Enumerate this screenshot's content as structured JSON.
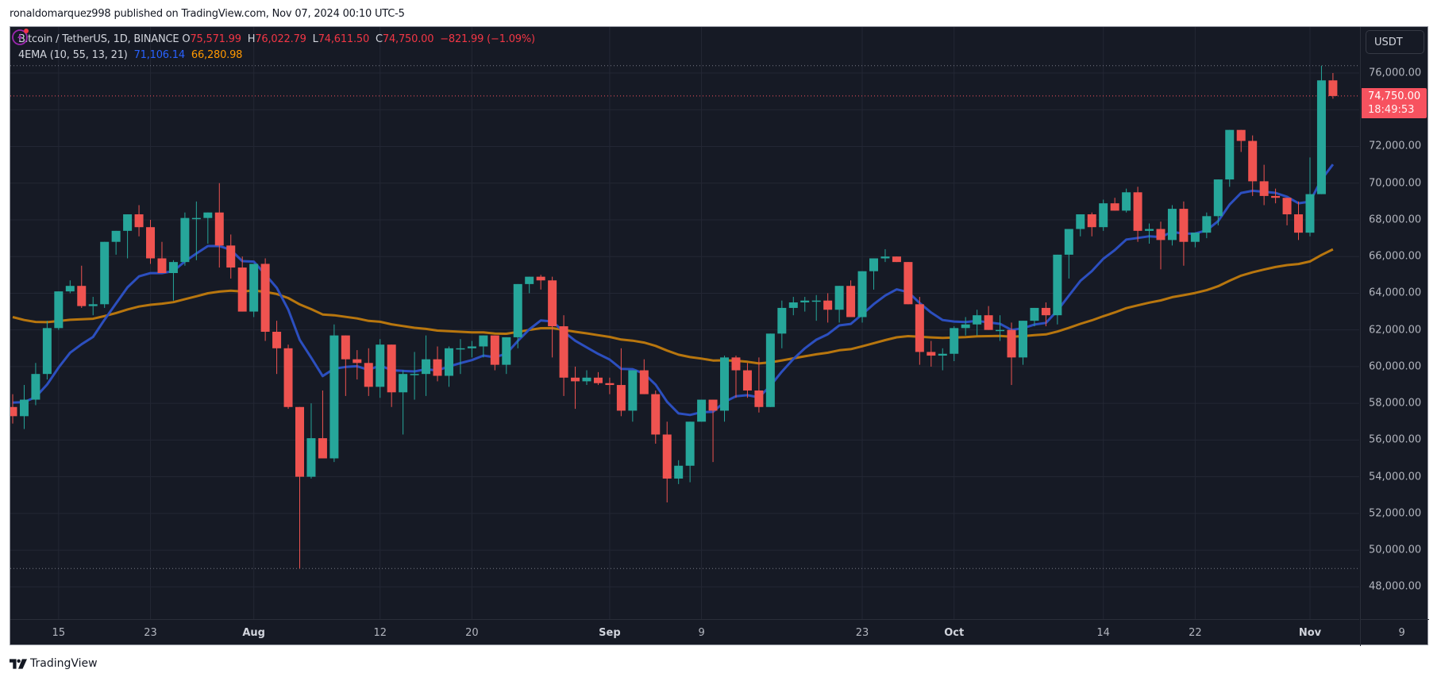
{
  "publish_line": "ronaldomarquez998 published on TradingView.com, Nov 07, 2024 00:10 UTC-5",
  "legend": {
    "symbol": "Bitcoin / TetherUS, 1D, BINANCE",
    "open_label": "O",
    "open": "75,571.99",
    "high_label": "H",
    "high": "76,022.79",
    "low_label": "L",
    "low": "74,611.50",
    "close_label": "C",
    "close": "74,750.00",
    "change": "−821.99 (−1.09%)",
    "indicator": "4EMA (10, 55, 13, 21)",
    "ema_fast_value": "71,106.14",
    "ema_slow_value": "66,280.98"
  },
  "price_axis": {
    "currency_button": "USDT",
    "last_price": "74,750.00",
    "countdown": "18:49:53"
  },
  "footer": {
    "brand": "TradingView"
  },
  "icons": {
    "alert": "lightning-bolt-icon",
    "logo": "tradingview-logo-icon"
  },
  "colors": {
    "up": "#26a69a",
    "down": "#ef5350",
    "background": "#161a25",
    "grid": "#232734",
    "ema_fast": "#2c4fbf",
    "ema_slow": "#b8760e",
    "last_price_line": "#f7525f"
  },
  "chart_data": {
    "type": "candlestick",
    "title": "Bitcoin / TetherUS, 1D, BINANCE",
    "xlabel": "",
    "ylabel": "USDT",
    "ylim": [
      46500,
      77500
    ],
    "grid": true,
    "legend_position": "top-left",
    "y_ticks": [
      "76,000.00",
      "72,000.00",
      "70,000.00",
      "68,000.00",
      "66,000.00",
      "64,000.00",
      "62,000.00",
      "60,000.00",
      "58,000.00",
      "56,000.00",
      "54,000.00",
      "52,000.00",
      "50,000.00",
      "48,000.00"
    ],
    "x_ticks": [
      {
        "label": "15",
        "index": 4,
        "bold": false
      },
      {
        "label": "23",
        "index": 12,
        "bold": false
      },
      {
        "label": "Aug",
        "index": 21,
        "bold": true
      },
      {
        "label": "12",
        "index": 32,
        "bold": false
      },
      {
        "label": "20",
        "index": 40,
        "bold": false
      },
      {
        "label": "Sep",
        "index": 52,
        "bold": true
      },
      {
        "label": "9",
        "index": 60,
        "bold": false
      },
      {
        "label": "23",
        "index": 74,
        "bold": false
      },
      {
        "label": "Oct",
        "index": 82,
        "bold": true
      },
      {
        "label": "14",
        "index": 95,
        "bold": false
      },
      {
        "label": "22",
        "index": 103,
        "bold": false
      },
      {
        "label": "Nov",
        "index": 113,
        "bold": true
      },
      {
        "label": "9",
        "index": 121,
        "bold": false
      }
    ],
    "reference_lines": {
      "last_price": 74750,
      "high_marker": 76400,
      "low_marker": 49000
    },
    "ohlc": [
      [
        57800,
        58500,
        56900,
        57300
      ],
      [
        57300,
        59000,
        56600,
        58200
      ],
      [
        58200,
        60200,
        57900,
        59600
      ],
      [
        59600,
        62500,
        59300,
        62100
      ],
      [
        62100,
        63800,
        62000,
        64100
      ],
      [
        64100,
        64700,
        64000,
        64400
      ],
      [
        64400,
        65500,
        63200,
        63300
      ],
      [
        63300,
        63800,
        62800,
        63400
      ],
      [
        63400,
        66800,
        63200,
        66800
      ],
      [
        66800,
        67300,
        66100,
        67400
      ],
      [
        67400,
        68100,
        65900,
        68300
      ],
      [
        68300,
        68800,
        67100,
        67600
      ],
      [
        67600,
        68000,
        65600,
        65900
      ],
      [
        65900,
        66800,
        65700,
        65100
      ],
      [
        65100,
        65800,
        63600,
        65700
      ],
      [
        65700,
        68400,
        65500,
        68100
      ],
      [
        68100,
        69000,
        65800,
        68100
      ],
      [
        68100,
        68300,
        66700,
        68400
      ],
      [
        68400,
        70000,
        65400,
        66600
      ],
      [
        66600,
        67200,
        64800,
        65400
      ],
      [
        65400,
        66000,
        64300,
        63000
      ],
      [
        63000,
        65600,
        62700,
        65600
      ],
      [
        65600,
        65900,
        61400,
        61900
      ],
      [
        61900,
        62500,
        59600,
        61000
      ],
      [
        61000,
        61200,
        57700,
        57800
      ],
      [
        57800,
        57800,
        49000,
        54000
      ],
      [
        54000,
        58000,
        53900,
        56100
      ],
      [
        56100,
        58700,
        55000,
        55000
      ],
      [
        55000,
        62300,
        54800,
        61700
      ],
      [
        61700,
        61700,
        58400,
        60400
      ],
      [
        60400,
        60900,
        59300,
        60200
      ],
      [
        60200,
        61000,
        58400,
        58900
      ],
      [
        58900,
        61500,
        58300,
        61200
      ],
      [
        61200,
        61200,
        57800,
        58600
      ],
      [
        58600,
        59800,
        56300,
        59600
      ],
      [
        59600,
        60800,
        58200,
        59600
      ],
      [
        59600,
        61700,
        58400,
        60400
      ],
      [
        60400,
        61100,
        59200,
        59500
      ],
      [
        59500,
        61100,
        58900,
        61000
      ],
      [
        61000,
        61500,
        59600,
        61000
      ],
      [
        61000,
        61400,
        60500,
        61100
      ],
      [
        61100,
        61500,
        60500,
        61700
      ],
      [
        61700,
        61100,
        59800,
        60100
      ],
      [
        60100,
        60800,
        59600,
        61600
      ],
      [
        61600,
        62800,
        61000,
        64500
      ],
      [
        64500,
        64900,
        64000,
        64900
      ],
      [
        64900,
        65000,
        64200,
        64700
      ],
      [
        64700,
        64900,
        60500,
        62200
      ],
      [
        62200,
        62800,
        58400,
        59400
      ],
      [
        59400,
        60000,
        57700,
        59200
      ],
      [
        59200,
        59800,
        59000,
        59400
      ],
      [
        59400,
        59700,
        59000,
        59100
      ],
      [
        59100,
        59400,
        58500,
        59000
      ],
      [
        59000,
        61000,
        57300,
        57600
      ],
      [
        57600,
        59600,
        57000,
        59800
      ],
      [
        59800,
        60400,
        58800,
        58500
      ],
      [
        58500,
        58700,
        55800,
        56300
      ],
      [
        56300,
        57000,
        52600,
        53900
      ],
      [
        53900,
        54900,
        53600,
        54600
      ],
      [
        54600,
        56000,
        53700,
        57000
      ],
      [
        57000,
        57500,
        57000,
        58200
      ],
      [
        58200,
        58200,
        54800,
        57600
      ],
      [
        57600,
        60600,
        57000,
        60500
      ],
      [
        60500,
        60600,
        58300,
        59800
      ],
      [
        59800,
        60200,
        58300,
        58700
      ],
      [
        58700,
        60500,
        57500,
        57800
      ],
      [
        57800,
        60500,
        58900,
        61800
      ],
      [
        61800,
        63600,
        61000,
        63200
      ],
      [
        63200,
        63800,
        62800,
        63500
      ],
      [
        63500,
        63800,
        63000,
        63600
      ],
      [
        63600,
        63900,
        62500,
        63600
      ],
      [
        63600,
        64000,
        62400,
        63100
      ],
      [
        63100,
        64400,
        62400,
        64400
      ],
      [
        64400,
        64700,
        62800,
        62700
      ],
      [
        62700,
        65000,
        62400,
        65200
      ],
      [
        65200,
        65500,
        64200,
        65900
      ],
      [
        65900,
        66400,
        65700,
        66000
      ],
      [
        66000,
        66000,
        65700,
        65700
      ],
      [
        65700,
        65700,
        63800,
        63400
      ],
      [
        63400,
        63800,
        60100,
        60800
      ],
      [
        60800,
        61400,
        60000,
        60600
      ],
      [
        60600,
        61000,
        59800,
        60700
      ],
      [
        60700,
        62200,
        60300,
        62100
      ],
      [
        62100,
        62700,
        61700,
        62300
      ],
      [
        62300,
        63100,
        61700,
        62800
      ],
      [
        62800,
        63300,
        62000,
        62000
      ],
      [
        62000,
        62800,
        61400,
        62000
      ],
      [
        62000,
        62400,
        59000,
        60500
      ],
      [
        60500,
        62500,
        60100,
        62500
      ],
      [
        62500,
        63100,
        62200,
        63200
      ],
      [
        63200,
        63500,
        62200,
        62800
      ],
      [
        62800,
        66000,
        62300,
        66100
      ],
      [
        66100,
        67000,
        64800,
        67500
      ],
      [
        67500,
        68100,
        67100,
        68300
      ],
      [
        68300,
        68400,
        67100,
        67600
      ],
      [
        67600,
        69100,
        67400,
        68900
      ],
      [
        68900,
        69200,
        68500,
        68500
      ],
      [
        68500,
        69700,
        68400,
        69500
      ],
      [
        69500,
        69800,
        66800,
        67400
      ],
      [
        67400,
        67800,
        66700,
        67500
      ],
      [
        67500,
        67900,
        65300,
        66900
      ],
      [
        66900,
        68800,
        66600,
        68600
      ],
      [
        68600,
        69000,
        65500,
        66800
      ],
      [
        66800,
        67300,
        66500,
        67300
      ],
      [
        67300,
        68400,
        67000,
        68200
      ],
      [
        68200,
        70100,
        67700,
        70200
      ],
      [
        70200,
        72800,
        69800,
        72900
      ],
      [
        72900,
        72500,
        71700,
        72300
      ],
      [
        72300,
        72600,
        69300,
        70100
      ],
      [
        70100,
        71000,
        68800,
        69300
      ],
      [
        69300,
        69700,
        68900,
        69200
      ],
      [
        69200,
        69100,
        67700,
        68300
      ],
      [
        68300,
        69000,
        66900,
        67300
      ],
      [
        67300,
        71400,
        67100,
        69400
      ],
      [
        69400,
        76400,
        69400,
        75600
      ],
      [
        75600,
        76000,
        74600,
        74750
      ]
    ],
    "series": [
      {
        "name": "EMA fast (blue)",
        "last_value": 71106.14
      },
      {
        "name": "EMA slow (orange)",
        "last_value": 66280.98
      }
    ]
  }
}
